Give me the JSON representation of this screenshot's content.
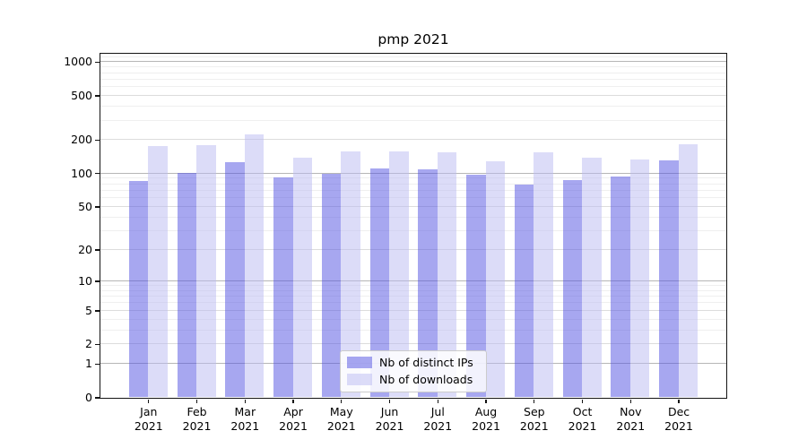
{
  "chart_data": {
    "type": "bar",
    "title": "pmp 2021",
    "categories": [
      "Jan 2021",
      "Feb 2021",
      "Mar 2021",
      "Apr 2021",
      "May 2021",
      "Jun 2021",
      "Jul 2021",
      "Aug 2021",
      "Sep 2021",
      "Oct 2021",
      "Nov 2021",
      "Dec 2021"
    ],
    "series": [
      {
        "name": "Nb of distinct IPs",
        "color": "rgba(80,80,225,0.5)",
        "values": [
          85,
          101,
          126,
          91,
          98,
          110,
          108,
          96,
          79,
          87,
          94,
          131
        ]
      },
      {
        "name": "Nb of downloads",
        "color": "rgba(185,185,241,0.5)",
        "values": [
          174,
          179,
          224,
          139,
          156,
          157,
          154,
          128,
          153,
          137,
          133,
          182
        ]
      }
    ],
    "xlabel": "",
    "ylabel": "",
    "yscale": "log1p",
    "ylim": [
      0,
      1190
    ],
    "yticks": [
      0,
      1,
      2,
      5,
      10,
      20,
      50,
      100,
      200,
      500,
      1000
    ],
    "grid": true,
    "legend_position": "lower center"
  }
}
